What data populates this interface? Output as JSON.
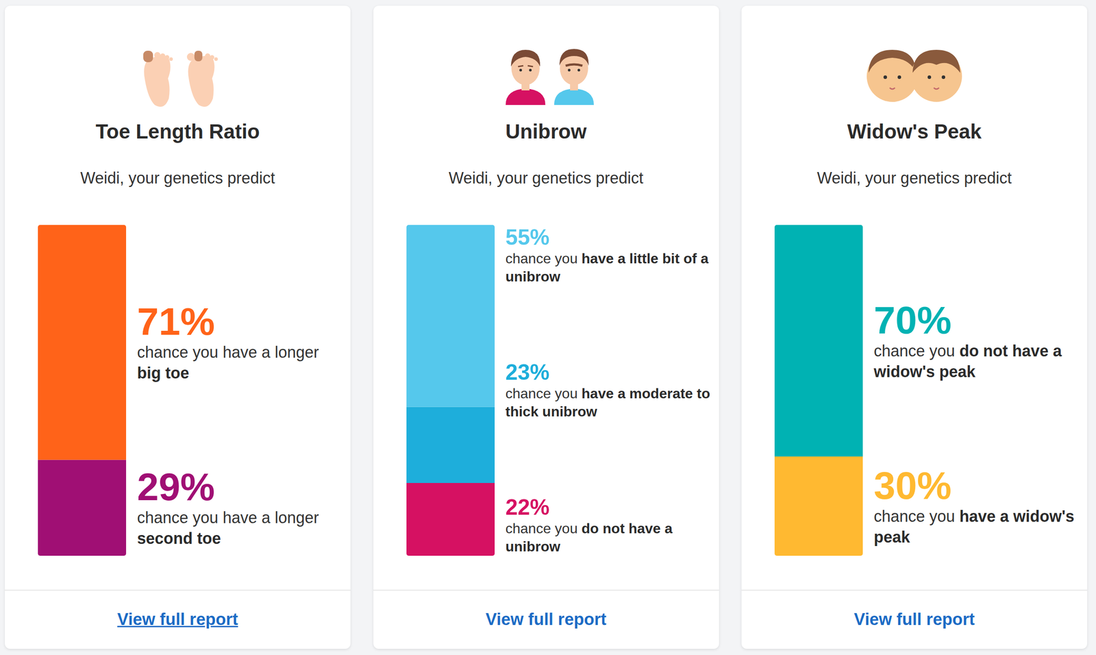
{
  "chart_data": [
    {
      "type": "bar",
      "stacked": true,
      "title": "Toe Length Ratio",
      "subtitle": "Weidi, your genetics predict",
      "link": "View full report",
      "categories": [
        null
      ],
      "ylim": [
        0,
        100
      ],
      "tick_labels": false,
      "grid": false,
      "data_labels": true,
      "series": [
        {
          "color": "#ff6319",
          "values": [
            71
          ],
          "value_labels": [
            "71%"
          ],
          "label_text": "chance you have a longer",
          "label_bold": "big toe"
        },
        {
          "color": "#a00f74",
          "values": [
            29
          ],
          "value_labels": [
            "29%"
          ],
          "label_text": "chance you have a longer",
          "label_bold": "second toe"
        }
      ]
    },
    {
      "type": "bar",
      "stacked": true,
      "title": "Unibrow",
      "subtitle": "Weidi, your genetics predict",
      "link": "View full report",
      "categories": [
        null
      ],
      "ylim": [
        0,
        100
      ],
      "tick_labels": false,
      "grid": false,
      "data_labels": true,
      "series": [
        {
          "color": "#55c8ec",
          "values": [
            55
          ],
          "value_labels": [
            "55%"
          ],
          "label_text": "chance you",
          "label_bold": "have a little bit of a unibrow"
        },
        {
          "color": "#1eaedb",
          "values": [
            23
          ],
          "value_labels": [
            "23%"
          ],
          "label_text": "chance you",
          "label_bold": "have a moderate to thick unibrow"
        },
        {
          "color": "#d61162",
          "values": [
            22
          ],
          "value_labels": [
            "22%"
          ],
          "label_text": "chance you",
          "label_bold": "do not have a unibrow"
        }
      ]
    },
    {
      "type": "bar",
      "stacked": true,
      "title": "Widow's Peak",
      "subtitle": "Weidi, your genetics predict",
      "link": "View full report",
      "categories": [
        null
      ],
      "ylim": [
        0,
        100
      ],
      "tick_labels": false,
      "grid": false,
      "data_labels": true,
      "series": [
        {
          "color": "#00b2b3",
          "values": [
            70
          ],
          "value_labels": [
            "70%"
          ],
          "label_text": "chance you",
          "label_bold": "do not have a widow's peak"
        },
        {
          "color": "#ffb931",
          "values": [
            30
          ],
          "value_labels": [
            "30%"
          ],
          "label_text": "chance you",
          "label_bold": "have a widow's peak"
        }
      ]
    }
  ]
}
